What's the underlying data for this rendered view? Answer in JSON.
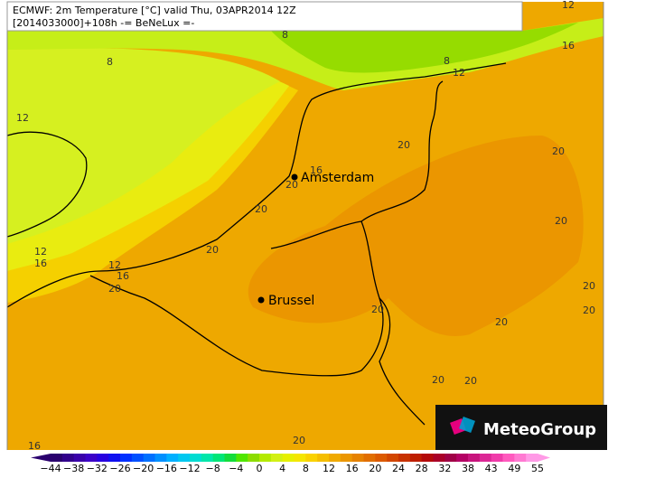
{
  "header": {
    "line1": "ECMWF: 2m Temperature [°C] valid Thu, 03APR2014 12Z",
    "line2": "[2014033000]+108h -= BeNeLux =-"
  },
  "cities": [
    "Amsterdam",
    "Brussel"
  ],
  "contour_labels": [
    12,
    8,
    16,
    8,
    8,
    12,
    12,
    20,
    20,
    16,
    20,
    20,
    20,
    20,
    12,
    16,
    12,
    16,
    20,
    20,
    20,
    20,
    20,
    20,
    20,
    16,
    20
  ],
  "color_scale": {
    "labels": [
      -44,
      -38,
      -32,
      -26,
      -20,
      -16,
      -12,
      -8,
      -4,
      0,
      4,
      8,
      12,
      16,
      20,
      24,
      28,
      32,
      38,
      43,
      49,
      55
    ],
    "colors": [
      "#2a006e",
      "#32008c",
      "#3a00aa",
      "#3c00c8",
      "#2800e0",
      "#1010f0",
      "#0030ff",
      "#0050ff",
      "#0070ff",
      "#0090ff",
      "#00b0ff",
      "#00c8f0",
      "#00dcd2",
      "#00e6aa",
      "#00e678",
      "#14dc3c",
      "#50e600",
      "#8cdc00",
      "#b4ea00",
      "#d2f014",
      "#e6f000",
      "#f5e600",
      "#fad200",
      "#f5be00",
      "#f0aa00",
      "#eb9600",
      "#e68200",
      "#e16e00",
      "#dc5a00",
      "#d24600",
      "#c83200",
      "#be1e00",
      "#b40a0a",
      "#aa0028",
      "#a00046",
      "#b40064",
      "#c8147d",
      "#dc2896",
      "#f03caa",
      "#ff5abe",
      "#ff7ad2",
      "#ff9ae6"
    ]
  },
  "brand": "MeteoGroup"
}
